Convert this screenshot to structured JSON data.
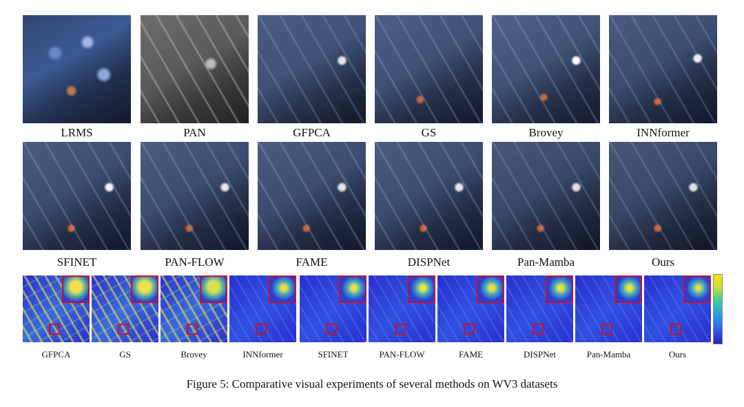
{
  "row1_labels": [
    "LRMS",
    "PAN",
    "GFPCA",
    "GS",
    "Brovey",
    "INNformer"
  ],
  "row2_labels": [
    "SFINET",
    "PAN-FLOW",
    "FAME",
    "DISPNet",
    "Pan-Mamba",
    "Ours"
  ],
  "row3_labels": [
    "GFPCA",
    "GS",
    "Brovey",
    "INNformer",
    "SFINET",
    "PAN-FLOW",
    "FAME",
    "DISPNet",
    "Pan-Mamba",
    "Ours"
  ],
  "caption": "Figure 5: Comparative visual experiments of several methods on WV3 datasets",
  "colors": {
    "zoom_border": "#c8102e",
    "error_base": "#2a2fd0",
    "satellite_dark": "#2b3750"
  }
}
